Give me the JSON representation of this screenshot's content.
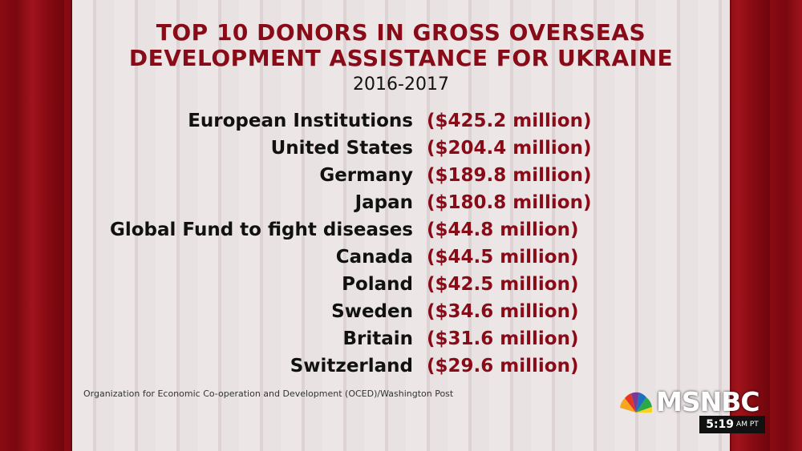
{
  "title_line1": "TOP 10 DONORS IN GROSS OVERSEAS",
  "title_line2": "DEVELOPMENT ASSISTANCE FOR UKRAINE",
  "subtitle": "2016-2017",
  "donors": [
    {
      "name": "European Institutions",
      "amount": "($425.2 million)"
    },
    {
      "name": "United States",
      "amount": "($204.4 million)"
    },
    {
      "name": "Germany",
      "amount": "($189.8 million)"
    },
    {
      "name": "Japan",
      "amount": "($180.8 million)"
    },
    {
      "name": "Global Fund to fight diseases",
      "amount": "($44.8 million)"
    },
    {
      "name": "Canada",
      "amount": "($44.5 million)"
    },
    {
      "name": "Poland",
      "amount": "($42.5 million)"
    },
    {
      "name": "Sweden",
      "amount": "($34.6 million)"
    },
    {
      "name": "Britain",
      "amount": "($31.6 million)"
    },
    {
      "name": "Switzerland",
      "amount": "($29.6 million)"
    }
  ],
  "source": "Organization for Economic Co-operation and Development (OCED)/Washington Post",
  "network": {
    "logo_text": "MSNBC",
    "icon": "peacock-icon"
  },
  "clock": {
    "time": "5:19",
    "period": "AM PT"
  },
  "colors": {
    "accent": "#8a0b18",
    "background_red": "#8a0a12"
  }
}
